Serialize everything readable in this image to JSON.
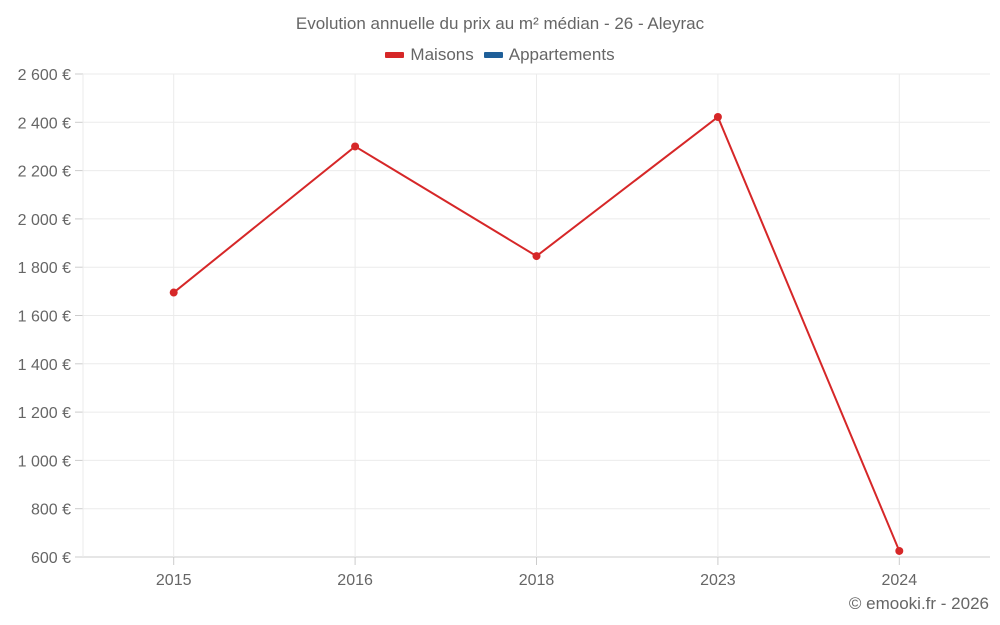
{
  "title": "Evolution annuelle du prix au m² médian - 26 - Aleyrac",
  "legend": [
    {
      "label": "Maisons",
      "color": "#d62728"
    },
    {
      "label": "Appartements",
      "color": "#1f5f99"
    }
  ],
  "credit": "© emooki.fr - 2026",
  "chart_data": {
    "type": "line",
    "title": "Evolution annuelle du prix au m² médian - 26 - Aleyrac",
    "xlabel": "",
    "ylabel": "",
    "categories": [
      "2015",
      "2016",
      "2018",
      "2023",
      "2024"
    ],
    "series": [
      {
        "name": "Maisons",
        "color": "#d62728",
        "values": [
          1695,
          2300,
          1846,
          2422,
          625
        ]
      },
      {
        "name": "Appartements",
        "color": "#1f5f99",
        "values": []
      }
    ],
    "ylim": [
      600,
      2600
    ],
    "yticks": [
      600,
      800,
      1000,
      1200,
      1400,
      1600,
      1800,
      2000,
      2200,
      2400,
      2600
    ],
    "ytick_labels": [
      "600 €",
      "800 €",
      "1 000 €",
      "1 200 €",
      "1 400 €",
      "1 600 €",
      "1 800 €",
      "2 000 €",
      "2 200 €",
      "2 400 €",
      "2 600 €"
    ],
    "grid": true,
    "legend_position": "top"
  }
}
